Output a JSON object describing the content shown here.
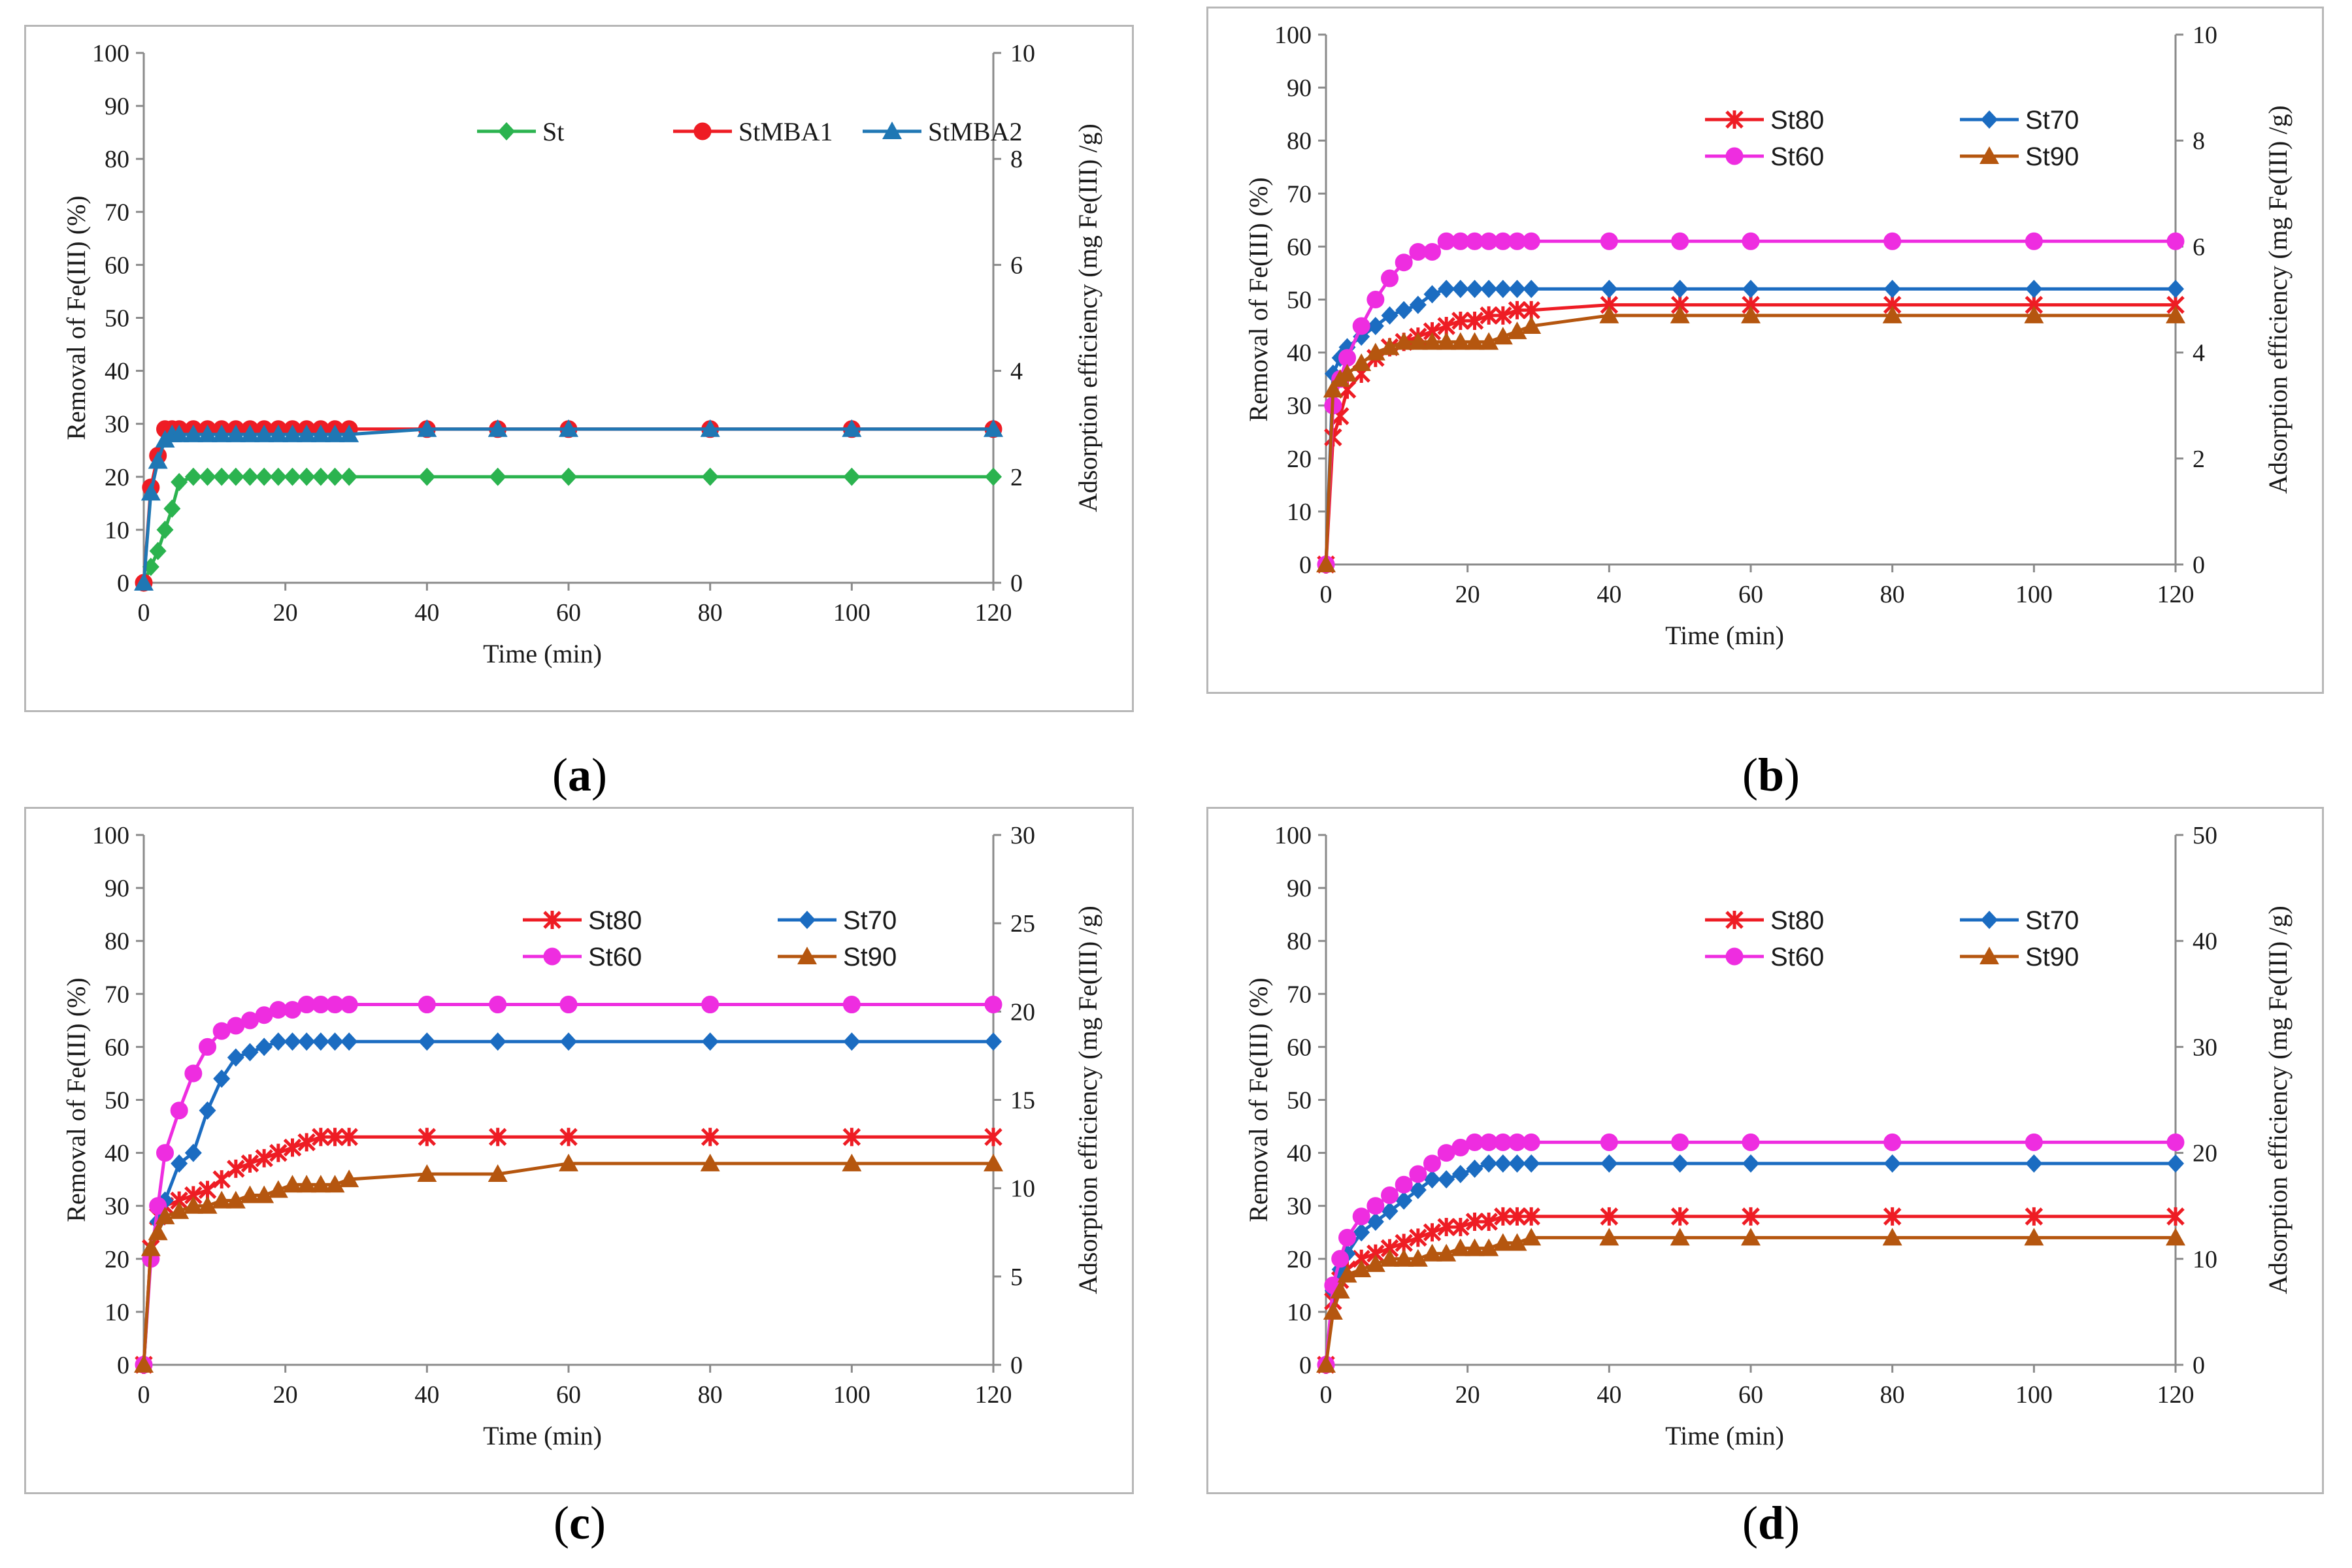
{
  "captions": [
    "a",
    "b",
    "c",
    "d"
  ],
  "colors": {
    "St": "#2bb34f",
    "StMBA1": "#ee1c24",
    "StMBA2": "#1f77b4",
    "St80": "#ee1c24",
    "St70": "#1b6cc1",
    "St60": "#ee2de0",
    "St90": "#b5560f"
  },
  "chart_data": [
    {
      "type": "line",
      "panel": "a",
      "xlabel": "Time (min)",
      "ylabel": "Removal of Fe(III) (%)",
      "y2label": "Adsorption efficiency  (mg Fe(III) /g)",
      "xlim": [
        0,
        120
      ],
      "xticks": [
        0,
        20,
        40,
        60,
        80,
        100,
        120
      ],
      "ylim": [
        0,
        100
      ],
      "yticks": [
        0,
        10,
        20,
        30,
        40,
        50,
        60,
        70,
        80,
        90,
        100
      ],
      "y2lim": [
        0,
        10
      ],
      "y2ticks": [
        0,
        2,
        4,
        6,
        8,
        10
      ],
      "legend_font": "serif",
      "legend_rows": [
        [
          "St",
          "StMBA1",
          "StMBA2"
        ]
      ],
      "series": [
        {
          "name": "St",
          "color": "#2bb34f",
          "marker": "diamond",
          "x": [
            0,
            1,
            2,
            3,
            4,
            5,
            7,
            9,
            11,
            13,
            15,
            17,
            19,
            21,
            23,
            25,
            27,
            29,
            40,
            50,
            60,
            80,
            100,
            120
          ],
          "y": [
            0,
            3,
            6,
            10,
            14,
            19,
            20,
            20,
            20,
            20,
            20,
            20,
            20,
            20,
            20,
            20,
            20,
            20,
            20,
            20,
            20,
            20,
            20,
            20
          ]
        },
        {
          "name": "StMBA1",
          "color": "#ee1c24",
          "marker": "circle",
          "x": [
            0,
            1,
            2,
            3,
            4,
            5,
            7,
            9,
            11,
            13,
            15,
            17,
            19,
            21,
            23,
            25,
            27,
            29,
            40,
            50,
            60,
            80,
            100,
            120
          ],
          "y": [
            0,
            18,
            24,
            29,
            29,
            29,
            29,
            29,
            29,
            29,
            29,
            29,
            29,
            29,
            29,
            29,
            29,
            29,
            29,
            29,
            29,
            29,
            29,
            29
          ]
        },
        {
          "name": "StMBA2",
          "color": "#1f77b4",
          "marker": "triangle",
          "x": [
            0,
            1,
            2,
            3,
            4,
            5,
            7,
            9,
            11,
            13,
            15,
            17,
            19,
            21,
            23,
            25,
            27,
            29,
            40,
            50,
            60,
            80,
            100,
            120
          ],
          "y": [
            0,
            17,
            23,
            27,
            28,
            28,
            28,
            28,
            28,
            28,
            28,
            28,
            28,
            28,
            28,
            28,
            28,
            28,
            29,
            29,
            29,
            29,
            29,
            29
          ]
        }
      ]
    },
    {
      "type": "line",
      "panel": "b",
      "xlabel": "Time (min)",
      "ylabel": "Removal of Fe(III) (%)",
      "y2label": "Adsorption efficiency  (mg Fe(III) /g)",
      "xlim": [
        0,
        120
      ],
      "xticks": [
        0,
        20,
        40,
        60,
        80,
        100,
        120
      ],
      "ylim": [
        0,
        100
      ],
      "yticks": [
        0,
        10,
        20,
        30,
        40,
        50,
        60,
        70,
        80,
        90,
        100
      ],
      "y2lim": [
        0,
        10
      ],
      "y2ticks": [
        0,
        2,
        4,
        6,
        8,
        10
      ],
      "legend_font": "sans",
      "legend_rows": [
        [
          "St80",
          "St70"
        ],
        [
          "St60",
          "St90"
        ]
      ],
      "series": [
        {
          "name": "St80",
          "color": "#ee1c24",
          "marker": "star",
          "x": [
            0,
            1,
            2,
            3,
            5,
            7,
            9,
            11,
            13,
            15,
            17,
            19,
            21,
            23,
            25,
            27,
            29,
            40,
            50,
            60,
            80,
            100,
            120
          ],
          "y": [
            0,
            24,
            28,
            33,
            36,
            39,
            41,
            42,
            43,
            44,
            45,
            46,
            46,
            47,
            47,
            48,
            48,
            49,
            49,
            49,
            49,
            49,
            49
          ]
        },
        {
          "name": "St70",
          "color": "#1b6cc1",
          "marker": "diamond",
          "x": [
            0,
            1,
            2,
            3,
            5,
            7,
            9,
            11,
            13,
            15,
            17,
            19,
            21,
            23,
            25,
            27,
            29,
            40,
            50,
            60,
            80,
            100,
            120
          ],
          "y": [
            0,
            36,
            39,
            41,
            43,
            45,
            47,
            48,
            49,
            51,
            52,
            52,
            52,
            52,
            52,
            52,
            52,
            52,
            52,
            52,
            52,
            52,
            52
          ]
        },
        {
          "name": "St60",
          "color": "#ee2de0",
          "marker": "circle",
          "x": [
            0,
            1,
            2,
            3,
            5,
            7,
            9,
            11,
            13,
            15,
            17,
            19,
            21,
            23,
            25,
            27,
            29,
            40,
            50,
            60,
            80,
            100,
            120
          ],
          "y": [
            0,
            30,
            35,
            39,
            45,
            50,
            54,
            57,
            59,
            59,
            61,
            61,
            61,
            61,
            61,
            61,
            61,
            61,
            61,
            61,
            61,
            61,
            61
          ]
        },
        {
          "name": "St90",
          "color": "#b5560f",
          "marker": "triangle",
          "x": [
            0,
            1,
            2,
            3,
            5,
            7,
            9,
            11,
            13,
            15,
            17,
            19,
            21,
            23,
            25,
            27,
            29,
            40,
            50,
            60,
            80,
            100,
            120
          ],
          "y": [
            0,
            33,
            35,
            36,
            38,
            40,
            41,
            42,
            42,
            42,
            42,
            42,
            42,
            42,
            43,
            44,
            45,
            47,
            47,
            47,
            47,
            47,
            47
          ]
        }
      ]
    },
    {
      "type": "line",
      "panel": "c",
      "xlabel": "Time (min)",
      "ylabel": "Removal of Fe(III) (%)",
      "y2label": "Adsorption efficiency  (mg Fe(III) /g)",
      "xlim": [
        0,
        120
      ],
      "xticks": [
        0,
        20,
        40,
        60,
        80,
        100,
        120
      ],
      "ylim": [
        0,
        100
      ],
      "yticks": [
        0,
        10,
        20,
        30,
        40,
        50,
        60,
        70,
        80,
        90,
        100
      ],
      "y2lim": [
        0,
        30
      ],
      "y2ticks": [
        0,
        5,
        10,
        15,
        20,
        25,
        30
      ],
      "legend_font": "sans",
      "legend_rows": [
        [
          "St80",
          "St70"
        ],
        [
          "St60",
          "St90"
        ]
      ],
      "series": [
        {
          "name": "St80",
          "color": "#ee1c24",
          "marker": "star",
          "x": [
            0,
            1,
            2,
            3,
            5,
            7,
            9,
            11,
            13,
            15,
            17,
            19,
            21,
            23,
            25,
            27,
            29,
            40,
            50,
            60,
            80,
            100,
            120
          ],
          "y": [
            0,
            22,
            28,
            30,
            31,
            32,
            33,
            35,
            37,
            38,
            39,
            40,
            41,
            42,
            43,
            43,
            43,
            43,
            43,
            43,
            43,
            43,
            43
          ]
        },
        {
          "name": "St70",
          "color": "#1b6cc1",
          "marker": "diamond",
          "x": [
            0,
            1,
            2,
            3,
            5,
            7,
            9,
            11,
            13,
            15,
            17,
            19,
            21,
            23,
            25,
            27,
            29,
            40,
            50,
            60,
            80,
            100,
            120
          ],
          "y": [
            0,
            21,
            27,
            31,
            38,
            40,
            48,
            54,
            58,
            59,
            60,
            61,
            61,
            61,
            61,
            61,
            61,
            61,
            61,
            61,
            61,
            61,
            61
          ]
        },
        {
          "name": "St60",
          "color": "#ee2de0",
          "marker": "circle",
          "x": [
            0,
            1,
            2,
            3,
            5,
            7,
            9,
            11,
            13,
            15,
            17,
            19,
            21,
            23,
            25,
            27,
            29,
            40,
            50,
            60,
            80,
            100,
            120
          ],
          "y": [
            0,
            20,
            30,
            40,
            48,
            55,
            60,
            63,
            64,
            65,
            66,
            67,
            67,
            68,
            68,
            68,
            68,
            68,
            68,
            68,
            68,
            68,
            68
          ]
        },
        {
          "name": "St90",
          "color": "#b5560f",
          "marker": "triangle",
          "x": [
            0,
            1,
            2,
            3,
            5,
            7,
            9,
            11,
            13,
            15,
            17,
            19,
            21,
            23,
            25,
            27,
            29,
            40,
            50,
            60,
            80,
            100,
            120
          ],
          "y": [
            0,
            22,
            25,
            28,
            29,
            30,
            30,
            31,
            31,
            32,
            32,
            33,
            34,
            34,
            34,
            34,
            35,
            36,
            36,
            38,
            38,
            38,
            38
          ]
        }
      ]
    },
    {
      "type": "line",
      "panel": "d",
      "xlabel": "Time (min)",
      "ylabel": "Removal of Fe(III) (%)",
      "y2label": "Adsorption efficiency  (mg Fe(III) /g)",
      "xlim": [
        0,
        120
      ],
      "xticks": [
        0,
        20,
        40,
        60,
        80,
        100,
        120
      ],
      "ylim": [
        0,
        100
      ],
      "yticks": [
        0,
        10,
        20,
        30,
        40,
        50,
        60,
        70,
        80,
        90,
        100
      ],
      "y2lim": [
        0,
        50
      ],
      "y2ticks": [
        0,
        10,
        20,
        30,
        40,
        50
      ],
      "legend_font": "sans",
      "legend_rows": [
        [
          "St80",
          "St70"
        ],
        [
          "St60",
          "St90"
        ]
      ],
      "series": [
        {
          "name": "St80",
          "color": "#ee1c24",
          "marker": "star",
          "x": [
            0,
            1,
            2,
            3,
            5,
            7,
            9,
            11,
            13,
            15,
            17,
            19,
            21,
            23,
            25,
            27,
            29,
            40,
            50,
            60,
            80,
            100,
            120
          ],
          "y": [
            0,
            12,
            16,
            18,
            20,
            21,
            22,
            23,
            24,
            25,
            26,
            26,
            27,
            27,
            28,
            28,
            28,
            28,
            28,
            28,
            28,
            28,
            28
          ]
        },
        {
          "name": "St70",
          "color": "#1b6cc1",
          "marker": "diamond",
          "x": [
            0,
            1,
            2,
            3,
            5,
            7,
            9,
            11,
            13,
            15,
            17,
            19,
            21,
            23,
            25,
            27,
            29,
            40,
            50,
            60,
            80,
            100,
            120
          ],
          "y": [
            0,
            14,
            18,
            21,
            25,
            27,
            29,
            31,
            33,
            35,
            35,
            36,
            37,
            38,
            38,
            38,
            38,
            38,
            38,
            38,
            38,
            38,
            38
          ]
        },
        {
          "name": "St60",
          "color": "#ee2de0",
          "marker": "circle",
          "x": [
            0,
            1,
            2,
            3,
            5,
            7,
            9,
            11,
            13,
            15,
            17,
            19,
            21,
            23,
            25,
            27,
            29,
            40,
            50,
            60,
            80,
            100,
            120
          ],
          "y": [
            0,
            15,
            20,
            24,
            28,
            30,
            32,
            34,
            36,
            38,
            40,
            41,
            42,
            42,
            42,
            42,
            42,
            42,
            42,
            42,
            42,
            42,
            42
          ]
        },
        {
          "name": "St90",
          "color": "#b5560f",
          "marker": "triangle",
          "x": [
            0,
            1,
            2,
            3,
            5,
            7,
            9,
            11,
            13,
            15,
            17,
            19,
            21,
            23,
            25,
            27,
            29,
            40,
            50,
            60,
            80,
            100,
            120
          ],
          "y": [
            0,
            10,
            14,
            17,
            18,
            19,
            20,
            20,
            20,
            21,
            21,
            22,
            22,
            22,
            23,
            23,
            24,
            24,
            24,
            24,
            24,
            24,
            24
          ]
        }
      ]
    }
  ]
}
